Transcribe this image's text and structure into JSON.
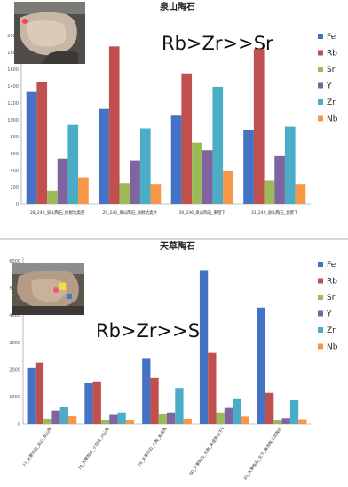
{
  "chart_data": [
    {
      "type": "bar",
      "title": "泉山陶石",
      "annotation": "Rb>Zr>>Sr",
      "categories": [
        "28_240_泉山陶石_採掘坑奥部",
        "29_243_泉山陶石_採掘坑奥外",
        "30_246_泉山陶石_東壁下",
        "31_249_泉山陶石_北壁下"
      ],
      "ylim": [
        0,
        2000
      ],
      "yticks": [
        0,
        200,
        400,
        600,
        800,
        1000,
        1200,
        1400,
        1600,
        1800,
        2000
      ],
      "legend_position": "right",
      "grid": false,
      "series": [
        {
          "name": "Fe",
          "color": "#4472C4",
          "values": [
            1330,
            1130,
            1050,
            880
          ]
        },
        {
          "name": "Rb",
          "color": "#C0504D",
          "values": [
            1450,
            1870,
            1550,
            1840
          ]
        },
        {
          "name": "Sr",
          "color": "#9BBB59",
          "values": [
            160,
            250,
            730,
            280
          ]
        },
        {
          "name": "Y",
          "color": "#8064A2",
          "values": [
            540,
            520,
            640,
            570
          ]
        },
        {
          "name": "Zr",
          "color": "#4BACC6",
          "values": [
            940,
            900,
            1390,
            920
          ]
        },
        {
          "name": "Nb",
          "color": "#F79646",
          "values": [
            310,
            240,
            390,
            240
          ]
        }
      ]
    },
    {
      "type": "bar",
      "title": "天草陶石",
      "annotation": "Rb>Zr>>Sr",
      "categories": [
        "77_天草陶石_皿山_皿山陶",
        "78_天草陶石_小田床_村山陶",
        "79_天草陶石_北陶_集成陶",
        "80_天草陶石_北陶_集成陶北下Y",
        "81_天草陶石_北下_集成陶上部陶石"
      ],
      "ylim": [
        0,
        6000
      ],
      "yticks": [
        0,
        1000,
        2000,
        3000,
        4000,
        5000,
        6000
      ],
      "legend_position": "right",
      "grid": false,
      "series": [
        {
          "name": "Fe",
          "color": "#4472C4",
          "values": [
            2060,
            1500,
            2400,
            5660,
            4280
          ]
        },
        {
          "name": "Rb",
          "color": "#C0504D",
          "values": [
            2260,
            1540,
            1700,
            2620,
            1150
          ]
        },
        {
          "name": "Sr",
          "color": "#9BBB59",
          "values": [
            200,
            140,
            360,
            400,
            150
          ]
        },
        {
          "name": "Y",
          "color": "#8064A2",
          "values": [
            500,
            340,
            400,
            600,
            220
          ]
        },
        {
          "name": "Zr",
          "color": "#4BACC6",
          "values": [
            620,
            400,
            1330,
            920,
            880
          ]
        },
        {
          "name": "Nb",
          "color": "#F79646",
          "values": [
            290,
            150,
            200,
            280,
            180
          ]
        }
      ]
    }
  ]
}
